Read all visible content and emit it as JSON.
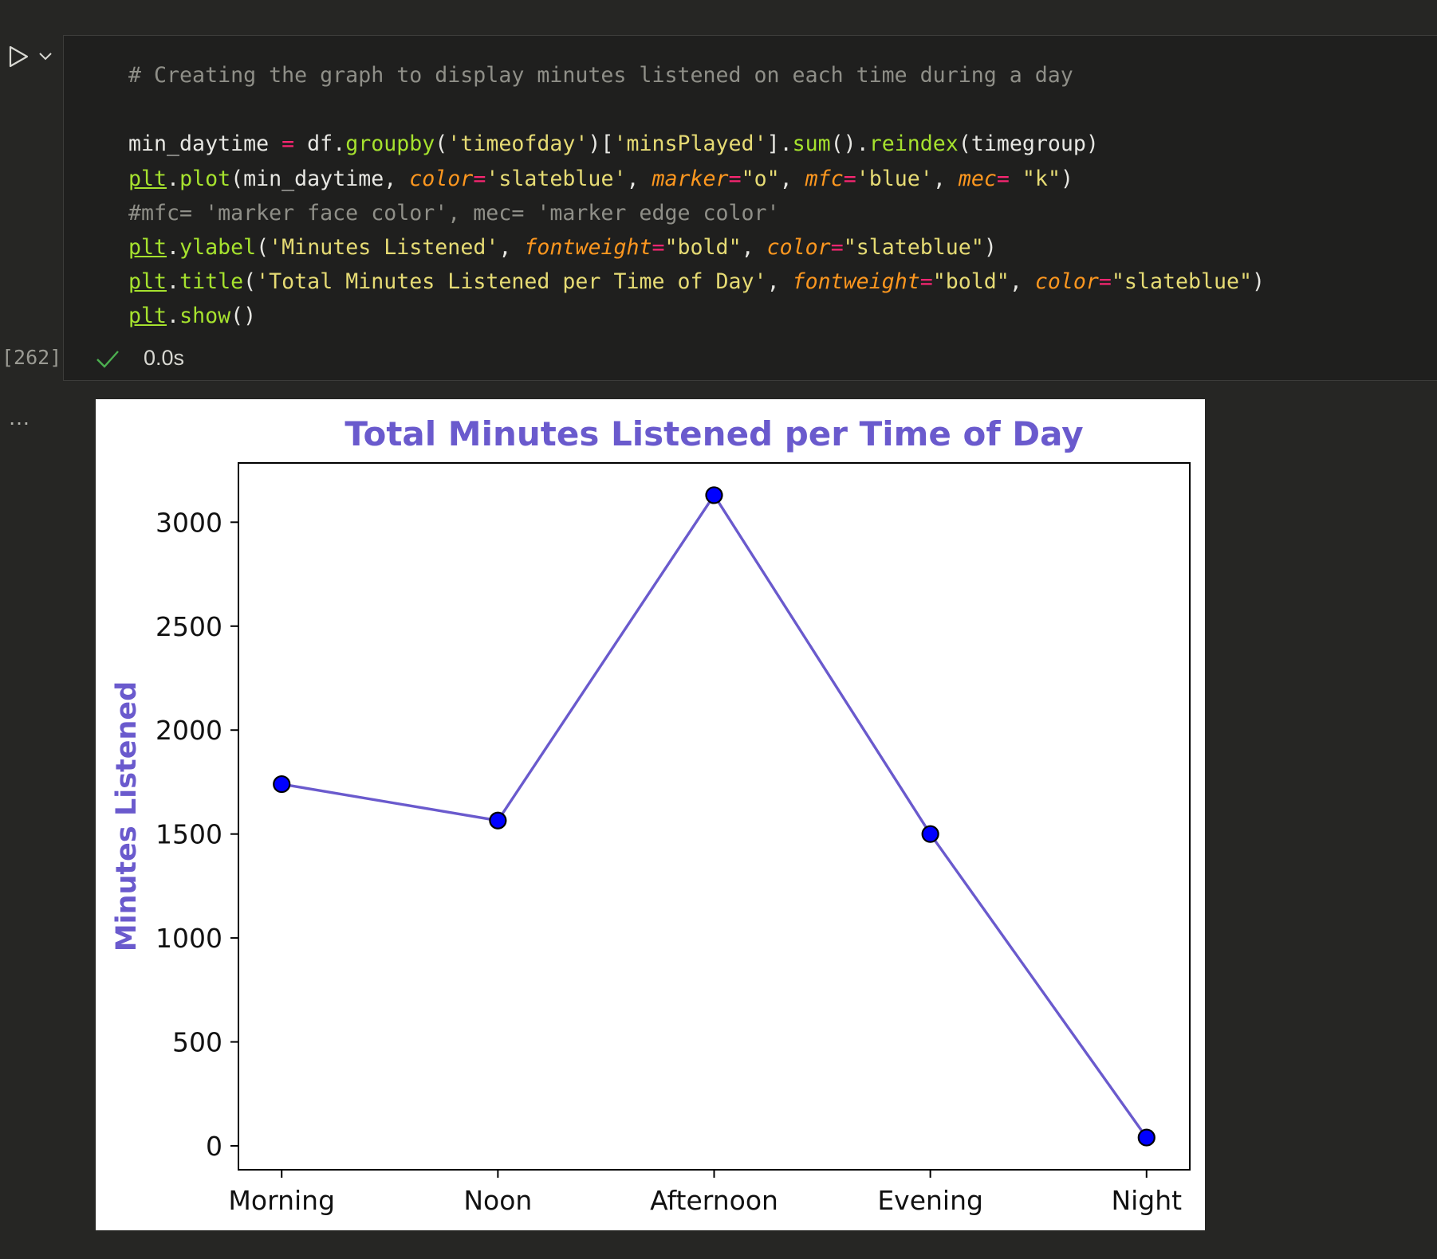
{
  "cell": {
    "execution_count": "[262]",
    "status_time": "0.0s",
    "output_menu_label": "…",
    "code_lines": [
      [
        {
          "t": "# Creating the graph to display minutes listened on each time during a day",
          "c": "com"
        }
      ],
      [],
      [
        {
          "t": "min_daytime ",
          "c": "txt"
        },
        {
          "t": "=",
          "c": "op"
        },
        {
          "t": " df.",
          "c": "txt"
        },
        {
          "t": "groupby",
          "c": "fn"
        },
        {
          "t": "(",
          "c": "txt"
        },
        {
          "t": "'timeofday'",
          "c": "str"
        },
        {
          "t": ")[",
          "c": "txt"
        },
        {
          "t": "'minsPlayed'",
          "c": "str"
        },
        {
          "t": "].",
          "c": "txt"
        },
        {
          "t": "sum",
          "c": "fn"
        },
        {
          "t": "().",
          "c": "txt"
        },
        {
          "t": "reindex",
          "c": "fn"
        },
        {
          "t": "(timegroup)",
          "c": "txt"
        }
      ],
      [
        {
          "t": "plt",
          "c": "mod"
        },
        {
          "t": ".",
          "c": "txt"
        },
        {
          "t": "plot",
          "c": "fn"
        },
        {
          "t": "(min_daytime, ",
          "c": "txt"
        },
        {
          "t": "color",
          "c": "kw"
        },
        {
          "t": "=",
          "c": "op"
        },
        {
          "t": "'slateblue'",
          "c": "str"
        },
        {
          "t": ", ",
          "c": "txt"
        },
        {
          "t": "marker",
          "c": "kw"
        },
        {
          "t": "=",
          "c": "op"
        },
        {
          "t": "\"o\"",
          "c": "str"
        },
        {
          "t": ", ",
          "c": "txt"
        },
        {
          "t": "mfc",
          "c": "kw"
        },
        {
          "t": "=",
          "c": "op"
        },
        {
          "t": "'blue'",
          "c": "str"
        },
        {
          "t": ", ",
          "c": "txt"
        },
        {
          "t": "mec",
          "c": "kw"
        },
        {
          "t": "= ",
          "c": "op"
        },
        {
          "t": "\"k\"",
          "c": "str"
        },
        {
          "t": ")",
          "c": "txt"
        }
      ],
      [
        {
          "t": "#mfc= 'marker face color', mec= 'marker edge color'",
          "c": "com"
        }
      ],
      [
        {
          "t": "plt",
          "c": "mod"
        },
        {
          "t": ".",
          "c": "txt"
        },
        {
          "t": "ylabel",
          "c": "fn"
        },
        {
          "t": "(",
          "c": "txt"
        },
        {
          "t": "'Minutes Listened'",
          "c": "str"
        },
        {
          "t": ", ",
          "c": "txt"
        },
        {
          "t": "fontweight",
          "c": "kw"
        },
        {
          "t": "=",
          "c": "op"
        },
        {
          "t": "\"bold\"",
          "c": "str"
        },
        {
          "t": ", ",
          "c": "txt"
        },
        {
          "t": "color",
          "c": "kw"
        },
        {
          "t": "=",
          "c": "op"
        },
        {
          "t": "\"slateblue\"",
          "c": "str"
        },
        {
          "t": ")",
          "c": "txt"
        }
      ],
      [
        {
          "t": "plt",
          "c": "mod"
        },
        {
          "t": ".",
          "c": "txt"
        },
        {
          "t": "title",
          "c": "fn"
        },
        {
          "t": "(",
          "c": "txt"
        },
        {
          "t": "'Total Minutes Listened per Time of Day'",
          "c": "str"
        },
        {
          "t": ", ",
          "c": "txt"
        },
        {
          "t": "fontweight",
          "c": "kw"
        },
        {
          "t": "=",
          "c": "op"
        },
        {
          "t": "\"bold\"",
          "c": "str"
        },
        {
          "t": ", ",
          "c": "txt"
        },
        {
          "t": "color",
          "c": "kw"
        },
        {
          "t": "=",
          "c": "op"
        },
        {
          "t": "\"slateblue\"",
          "c": "str"
        },
        {
          "t": ")",
          "c": "txt"
        }
      ],
      [
        {
          "t": "plt",
          "c": "mod"
        },
        {
          "t": ".",
          "c": "txt"
        },
        {
          "t": "show",
          "c": "fn"
        },
        {
          "t": "()",
          "c": "txt"
        }
      ]
    ]
  },
  "icons": {
    "run": "play-icon",
    "run_menu": "chevron-down-icon",
    "status": "check-icon"
  },
  "colors": {
    "line": "#6a5acd",
    "marker_face": "#0000ff",
    "marker_edge": "#000000",
    "title": "#6a5acd",
    "success": "#4caf50"
  },
  "chart_data": {
    "type": "line",
    "title": "Total Minutes Listened per Time of Day",
    "xlabel": "",
    "ylabel": "Minutes Listened",
    "categories": [
      "Morning",
      "Noon",
      "Afternoon",
      "Evening",
      "Night"
    ],
    "series": [
      {
        "values": [
          1740,
          1565,
          3130,
          1500,
          40
        ]
      }
    ],
    "yticks": [
      0,
      500,
      1000,
      1500,
      2000,
      2500,
      3000
    ],
    "ylim": [
      -115,
      3285
    ],
    "grid": false,
    "legend": "none"
  }
}
